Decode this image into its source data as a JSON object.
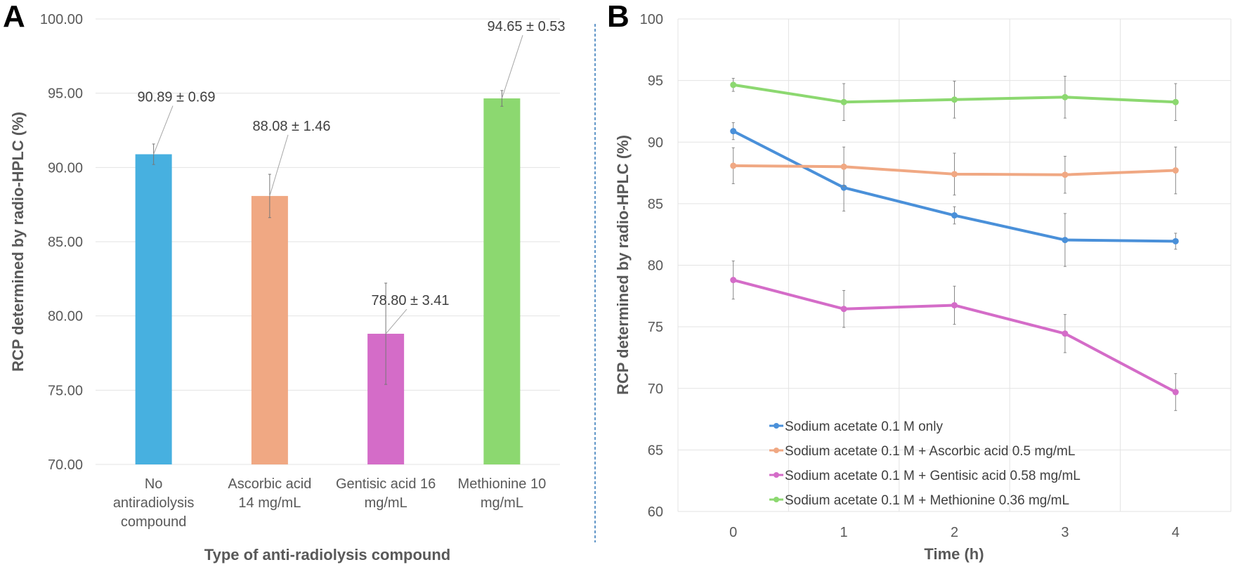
{
  "panels": {
    "a": "A",
    "b": "B"
  },
  "chart_data": [
    {
      "type": "bar",
      "panel": "A",
      "xlabel": "Type of anti-radiolysis compound",
      "ylabel": "RCP determined by radio-HPLC (%)",
      "ylim": [
        70,
        100
      ],
      "yticks": [
        "70.00",
        "75.00",
        "80.00",
        "85.00",
        "90.00",
        "95.00",
        "100.00"
      ],
      "grid": "horizontal",
      "categories": [
        [
          "No",
          "antiradiolysis",
          "compound"
        ],
        [
          "Ascorbic acid",
          "14 mg/mL"
        ],
        [
          "Gentisic acid 16",
          "mg/mL"
        ],
        [
          "Methionine 10",
          "mg/mL"
        ]
      ],
      "values": [
        90.89,
        88.08,
        78.8,
        94.65
      ],
      "errors": [
        0.69,
        1.46,
        3.41,
        0.53
      ],
      "data_labels": [
        "90.89 ± 0.69",
        "88.08 ± 1.46",
        "78.80 ± 3.41",
        "94.65 ± 0.53"
      ],
      "colors": [
        "#47b0e0",
        "#f0a883",
        "#d46cc8",
        "#8cd870"
      ]
    },
    {
      "type": "line",
      "panel": "B",
      "xlabel": "Time (h)",
      "ylabel": "RCP determined by radio-HPLC (%)",
      "x": [
        0,
        1,
        2,
        3,
        4
      ],
      "ylim": [
        60,
        100
      ],
      "yticks": [
        "60",
        "65",
        "70",
        "75",
        "80",
        "85",
        "90",
        "95",
        "100"
      ],
      "grid": "both",
      "legend_position": "bottom-left inside",
      "series": [
        {
          "name": "Sodium acetate 0.1 M only",
          "color": "#4a90d9",
          "values": [
            90.89,
            86.3,
            84.05,
            82.05,
            81.95
          ],
          "errors": [
            0.69,
            1.9,
            0.7,
            2.15,
            0.65
          ]
        },
        {
          "name": "Sodium acetate 0.1 M + Ascorbic acid 0.5 mg/mL",
          "color": "#f0a883",
          "values": [
            88.08,
            88.0,
            87.4,
            87.35,
            87.7
          ],
          "errors": [
            1.46,
            1.6,
            1.7,
            1.5,
            1.9
          ]
        },
        {
          "name": "Sodium acetate 0.1 M + Gentisic acid 0.58 mg/mL",
          "color": "#d46cc8",
          "values": [
            78.8,
            76.45,
            76.75,
            74.45,
            69.7
          ],
          "errors": [
            1.55,
            1.5,
            1.55,
            1.55,
            1.5
          ]
        },
        {
          "name": "Sodium acetate 0.1 M + Methionine 0.36 mg/mL",
          "color": "#8cd870",
          "values": [
            94.65,
            93.25,
            93.45,
            93.65,
            93.25
          ],
          "errors": [
            0.53,
            1.5,
            1.5,
            1.7,
            1.5
          ]
        }
      ]
    }
  ]
}
